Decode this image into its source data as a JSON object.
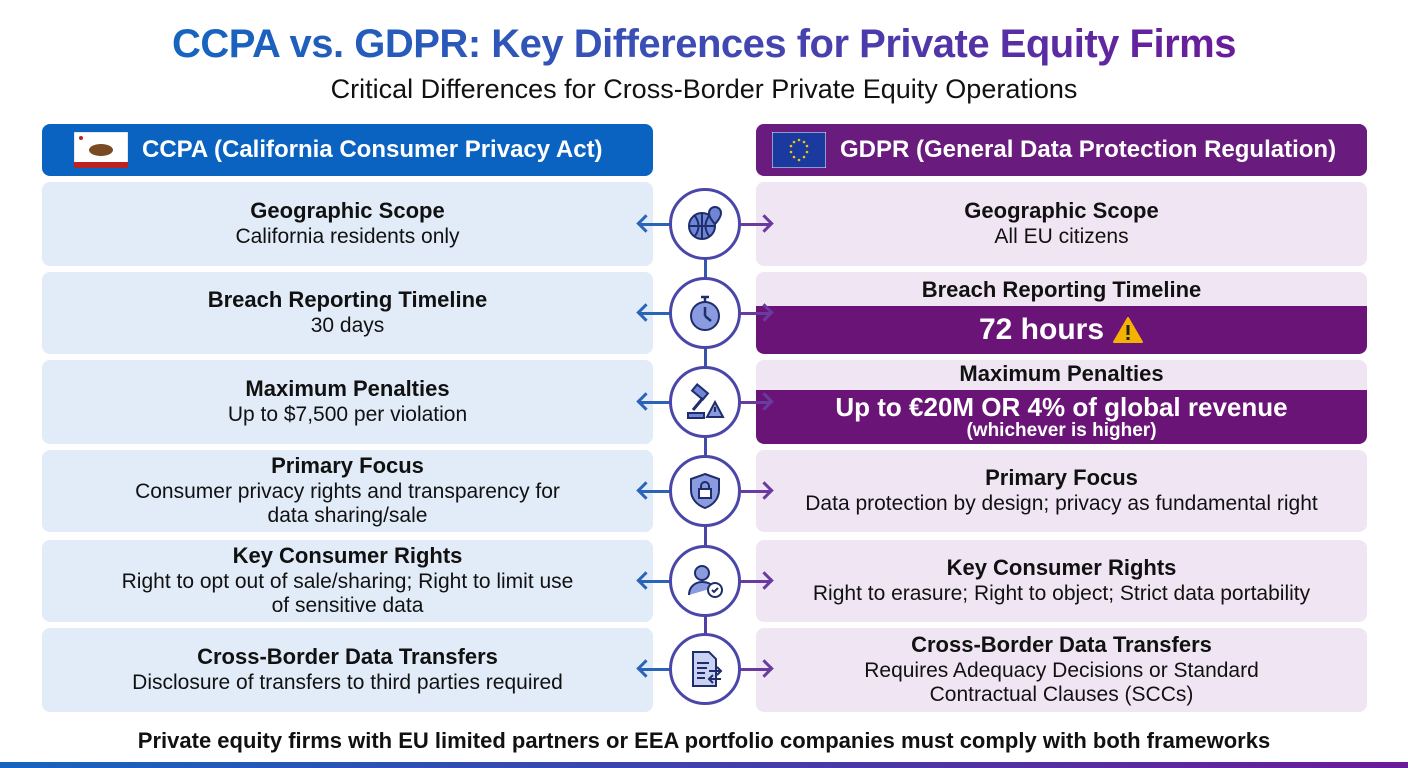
{
  "title": "CCPA vs. GDPR: Key Differences for Private Equity Firms",
  "subtitle": "Critical Differences for Cross-Border Private Equity Operations",
  "colors": {
    "ccpa": "#0b63c1",
    "gdpr": "#6a1b7e",
    "ccpa_card": "#e1ecf8",
    "gdpr_card": "#f0e6f3",
    "warning": "#f5b301"
  },
  "ccpa": {
    "header": "CCPA (California Consumer Privacy Act)",
    "flag_icon": "california-flag-icon",
    "rows": [
      {
        "title": "Geographic Scope",
        "text": "California residents only"
      },
      {
        "title": "Breach Reporting Timeline",
        "text": "30 days"
      },
      {
        "title": "Maximum Penalties",
        "text": "Up to $7,500 per violation"
      },
      {
        "title": "Primary Focus",
        "text": "Consumer privacy rights and transparency for data sharing/sale"
      },
      {
        "title": "Key Consumer Rights",
        "text": "Right to opt out of sale/sharing; Right to limit use of sensitive data"
      },
      {
        "title": "Cross-Border Data Transfers",
        "text": "Disclosure of transfers to third parties required"
      }
    ]
  },
  "gdpr": {
    "header": "GDPR (General Data Protection Regulation)",
    "flag_icon": "eu-flag-icon",
    "rows": [
      {
        "title": "Geographic Scope",
        "text": "All EU citizens"
      },
      {
        "title": "Breach Reporting Timeline",
        "text": "72 hours",
        "icon": "warning-icon"
      },
      {
        "title": "Maximum Penalties",
        "text": "Up to €20M OR 4% of global revenue",
        "subtext": "(whichever is higher)"
      },
      {
        "title": "Primary Focus",
        "text": "Data protection by design; privacy as fundamental right"
      },
      {
        "title": "Key Consumer Rights",
        "text": "Right to erasure; Right to object; Strict data portability"
      },
      {
        "title": "Cross-Border Data Transfers",
        "text": "Requires Adequacy Decisions or Standard Contractual Clauses (SCCs)"
      }
    ]
  },
  "center_icons": [
    "globe-location-icon",
    "stopwatch-icon",
    "gavel-warning-icon",
    "shield-lock-icon",
    "user-check-icon",
    "document-transfer-icon"
  ],
  "footer": "Private equity firms with EU limited partners or EEA portfolio companies must comply with both frameworks"
}
